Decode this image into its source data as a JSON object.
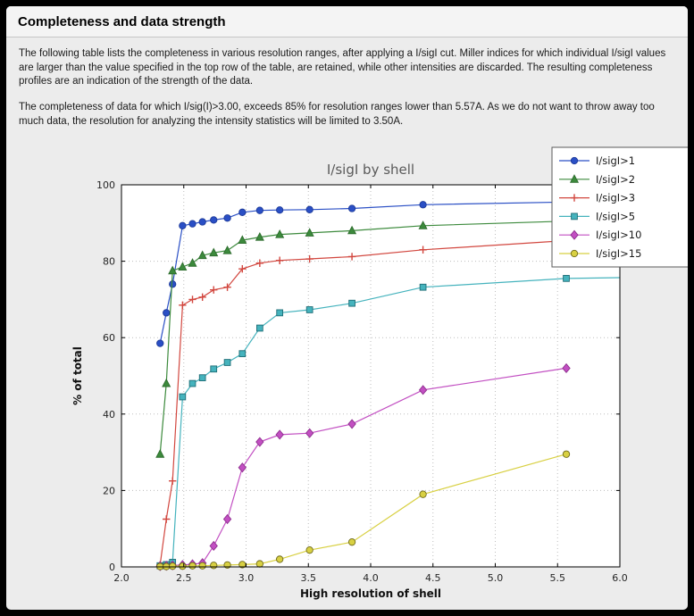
{
  "window": {
    "title": "Completeness and data strength"
  },
  "body": {
    "paragraph1": "The following table lists the completeness in various resolution ranges, after applying a I/sigI cut. Miller indices for which individual I/sigI values are larger than the value specified in the top row of the table, are retained, while other intensities are discarded. The resulting completeness profiles are an indication of the strength of the data.",
    "paragraph2": "The completeness of data for which I/sig(I)>3.00, exceeds  85% for resolution ranges lower than 5.57A. As we do not want to throw away too much data, the resolution for analyzing the intensity statistics will be limited to 3.50A."
  },
  "chart_data": {
    "type": "line",
    "title": "I/sigI by shell",
    "xlabel": "High resolution of shell",
    "ylabel": "% of total",
    "xlim": [
      2.0,
      6.0
    ],
    "ylim": [
      0,
      100
    ],
    "xticks": [
      2.0,
      2.5,
      3.0,
      3.5,
      4.0,
      4.5,
      5.0,
      5.5,
      6.0
    ],
    "yticks": [
      0,
      20,
      40,
      60,
      80,
      100
    ],
    "grid": "dotted",
    "grid_color": "#bdbdbd",
    "plot_bg": "#ffffff",
    "legend_position": "upper-right-overlapping-top",
    "series": [
      {
        "name": "I/sigI>1",
        "marker": "circle",
        "color": "#2a4fc5",
        "edge": "#1d3a99",
        "clip_end": true,
        "x": [
          2.31,
          2.36,
          2.41,
          2.49,
          2.57,
          2.65,
          2.74,
          2.85,
          2.97,
          3.11,
          3.27,
          3.51,
          3.85,
          4.42,
          5.57,
          6.0
        ],
        "y": [
          58.5,
          66.5,
          74.0,
          89.3,
          89.8,
          90.3,
          90.8,
          91.3,
          92.8,
          93.3,
          93.4,
          93.5,
          93.8,
          94.8,
          95.5,
          95.7
        ]
      },
      {
        "name": "I/sigI>2",
        "marker": "triangle",
        "color": "#3c8a3c",
        "edge": "#2c6b2c",
        "clip_end": true,
        "x": [
          2.31,
          2.36,
          2.41,
          2.49,
          2.57,
          2.65,
          2.74,
          2.85,
          2.97,
          3.11,
          3.27,
          3.51,
          3.85,
          4.42,
          5.57,
          6.0
        ],
        "y": [
          29.5,
          48.0,
          77.5,
          78.5,
          79.5,
          81.5,
          82.2,
          82.8,
          85.5,
          86.3,
          87.0,
          87.4,
          88.0,
          89.3,
          90.5,
          90.7
        ]
      },
      {
        "name": "I/sigI>3",
        "marker": "plus",
        "color": "#d2473f",
        "edge": "#d2473f",
        "clip_end": true,
        "x": [
          2.31,
          2.36,
          2.41,
          2.49,
          2.57,
          2.65,
          2.74,
          2.85,
          2.97,
          3.11,
          3.27,
          3.51,
          3.85,
          4.42,
          5.57,
          6.0
        ],
        "y": [
          0.5,
          12.5,
          22.5,
          68.5,
          70.0,
          70.6,
          72.5,
          73.2,
          78.0,
          79.5,
          80.2,
          80.6,
          81.2,
          83.0,
          85.4,
          85.5
        ]
      },
      {
        "name": "I/sigI>5",
        "marker": "square",
        "color": "#45b3bd",
        "edge": "#1f6d76",
        "clip_end": true,
        "x": [
          2.31,
          2.36,
          2.41,
          2.49,
          2.57,
          2.65,
          2.74,
          2.85,
          2.97,
          3.11,
          3.27,
          3.51,
          3.85,
          4.42,
          5.57,
          6.0
        ],
        "y": [
          0.3,
          0.6,
          1.2,
          44.5,
          48.0,
          49.5,
          51.8,
          53.5,
          55.8,
          62.5,
          66.5,
          67.3,
          69.0,
          73.2,
          75.5,
          75.7
        ]
      },
      {
        "name": "I/sigI>10",
        "marker": "diamond",
        "color": "#c24fc2",
        "edge": "#8e2f8e",
        "clip_end": false,
        "x": [
          2.31,
          2.36,
          2.41,
          2.49,
          2.57,
          2.65,
          2.74,
          2.85,
          2.97,
          3.11,
          3.27,
          3.51,
          3.85,
          4.42,
          5.57
        ],
        "y": [
          0.2,
          0.3,
          0.4,
          0.5,
          0.7,
          1.0,
          5.5,
          12.5,
          26.0,
          32.7,
          34.6,
          35.0,
          37.4,
          46.3,
          52.0
        ]
      },
      {
        "name": "I/sigI>15",
        "marker": "circle",
        "color": "#d8d042",
        "edge": "#6f6a1c",
        "clip_end": false,
        "x": [
          2.31,
          2.36,
          2.41,
          2.49,
          2.57,
          2.65,
          2.74,
          2.85,
          2.97,
          3.11,
          3.27,
          3.51,
          3.85,
          4.42,
          5.57
        ],
        "y": [
          0.1,
          0.1,
          0.2,
          0.2,
          0.3,
          0.3,
          0.4,
          0.5,
          0.6,
          0.8,
          2.0,
          4.4,
          6.5,
          19.0,
          29.5
        ]
      }
    ]
  }
}
